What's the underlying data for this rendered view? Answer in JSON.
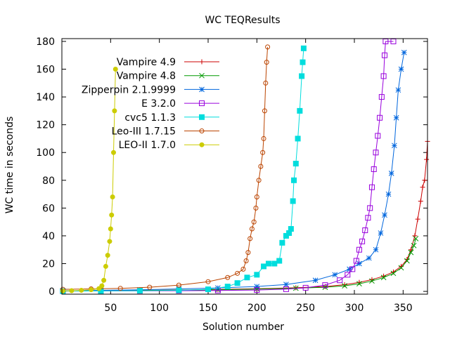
{
  "chart_data": {
    "type": "line",
    "title": "WC TEQResults",
    "xlabel": "Solution number",
    "ylabel": "WC time in seconds",
    "xlim": [
      0,
      375
    ],
    "ylim": [
      -2,
      182
    ],
    "x_ticks": [
      50,
      100,
      150,
      200,
      250,
      300,
      350
    ],
    "y_ticks": [
      0,
      20,
      40,
      60,
      80,
      100,
      120,
      140,
      160,
      180
    ],
    "grid": false,
    "legend_position": "top-left",
    "series": [
      {
        "name": "Vampire 4.9",
        "color": "#cc0000",
        "marker": "plus",
        "points": [
          [
            1,
            0.3
          ],
          [
            40,
            0.5
          ],
          [
            80,
            0.8
          ],
          [
            120,
            1.0
          ],
          [
            160,
            1.4
          ],
          [
            200,
            1.9
          ],
          [
            240,
            2.6
          ],
          [
            270,
            3.5
          ],
          [
            290,
            4.8
          ],
          [
            305,
            6.5
          ],
          [
            318,
            8.5
          ],
          [
            330,
            11
          ],
          [
            340,
            14
          ],
          [
            348,
            18
          ],
          [
            354,
            23
          ],
          [
            358,
            30
          ],
          [
            362,
            40
          ],
          [
            365,
            52
          ],
          [
            368,
            65
          ],
          [
            370,
            75
          ],
          [
            372,
            80
          ],
          [
            374,
            95
          ],
          [
            375,
            108
          ]
        ]
      },
      {
        "name": "Vampire 4.8",
        "color": "#009900",
        "marker": "cross",
        "points": [
          [
            1,
            0.3
          ],
          [
            40,
            0.5
          ],
          [
            80,
            0.7
          ],
          [
            120,
            0.9
          ],
          [
            160,
            1.2
          ],
          [
            200,
            1.7
          ],
          [
            240,
            2.3
          ],
          [
            270,
            3.0
          ],
          [
            290,
            4.0
          ],
          [
            305,
            5.5
          ],
          [
            318,
            7.5
          ],
          [
            330,
            10
          ],
          [
            340,
            13
          ],
          [
            348,
            17
          ],
          [
            354,
            22
          ],
          [
            358,
            28
          ],
          [
            361,
            33
          ],
          [
            363,
            38
          ]
        ]
      },
      {
        "name": "Zipperpin 2.1.9999",
        "color": "#0066dd",
        "marker": "star",
        "points": [
          [
            1,
            0.4
          ],
          [
            40,
            0.8
          ],
          [
            80,
            1.2
          ],
          [
            120,
            1.8
          ],
          [
            160,
            2.5
          ],
          [
            200,
            3.5
          ],
          [
            230,
            5.0
          ],
          [
            260,
            8.0
          ],
          [
            280,
            12
          ],
          [
            295,
            16
          ],
          [
            305,
            20
          ],
          [
            315,
            24
          ],
          [
            322,
            30
          ],
          [
            327,
            42
          ],
          [
            331,
            55
          ],
          [
            335,
            70
          ],
          [
            338,
            85
          ],
          [
            341,
            105
          ],
          [
            343,
            125
          ],
          [
            345,
            145
          ],
          [
            348,
            160
          ],
          [
            351,
            172
          ]
        ]
      },
      {
        "name": "E 3.2.0",
        "color": "#9900dd",
        "marker": "square",
        "points": [
          [
            1,
            0.2
          ],
          [
            40,
            0.3
          ],
          [
            80,
            0.4
          ],
          [
            120,
            0.5
          ],
          [
            160,
            0.7
          ],
          [
            200,
            1.0
          ],
          [
            230,
            1.6
          ],
          [
            250,
            2.6
          ],
          [
            270,
            4.5
          ],
          [
            285,
            8.0
          ],
          [
            293,
            12
          ],
          [
            298,
            16
          ],
          [
            302,
            22
          ],
          [
            305,
            30
          ],
          [
            308,
            36
          ],
          [
            311,
            44
          ],
          [
            314,
            53
          ],
          [
            316,
            60
          ],
          [
            318,
            75
          ],
          [
            320,
            88
          ],
          [
            322,
            100
          ],
          [
            324,
            112
          ],
          [
            326,
            125
          ],
          [
            328,
            140
          ],
          [
            330,
            155
          ],
          [
            331,
            170
          ],
          [
            332,
            180
          ],
          [
            340,
            180
          ]
        ]
      },
      {
        "name": "cvc5 1.1.3",
        "color": "#00dddd",
        "marker": "filled-square",
        "points": [
          [
            1,
            0.2
          ],
          [
            40,
            0.3
          ],
          [
            80,
            0.5
          ],
          [
            120,
            0.8
          ],
          [
            150,
            1.5
          ],
          [
            170,
            3.5
          ],
          [
            180,
            6.0
          ],
          [
            190,
            10
          ],
          [
            200,
            12
          ],
          [
            207,
            18
          ],
          [
            212,
            20
          ],
          [
            218,
            20
          ],
          [
            223,
            22
          ],
          [
            226,
            35
          ],
          [
            230,
            40
          ],
          [
            233,
            42
          ],
          [
            235,
            45
          ],
          [
            237,
            65
          ],
          [
            238,
            80
          ],
          [
            240,
            92
          ],
          [
            242,
            110
          ],
          [
            244,
            130
          ],
          [
            246,
            155
          ],
          [
            247,
            165
          ],
          [
            248,
            175
          ]
        ]
      },
      {
        "name": "Leo-III 1.7.15",
        "color": "#bb4400",
        "marker": "circle",
        "points": [
          [
            1,
            1.5
          ],
          [
            30,
            1.8
          ],
          [
            60,
            2.2
          ],
          [
            90,
            3.0
          ],
          [
            120,
            4.5
          ],
          [
            150,
            7.0
          ],
          [
            170,
            10
          ],
          [
            180,
            13
          ],
          [
            186,
            16
          ],
          [
            189,
            22
          ],
          [
            191,
            28
          ],
          [
            193,
            38
          ],
          [
            195,
            45
          ],
          [
            197,
            50
          ],
          [
            199,
            60
          ],
          [
            200,
            68
          ],
          [
            202,
            80
          ],
          [
            204,
            90
          ],
          [
            206,
            100
          ],
          [
            207,
            110
          ],
          [
            208,
            130
          ],
          [
            209,
            150
          ],
          [
            210,
            165
          ],
          [
            211,
            176
          ]
        ]
      },
      {
        "name": "LEO-II 1.7.0",
        "color": "#cccc00",
        "marker": "filled-circle",
        "points": [
          [
            1,
            0.3
          ],
          [
            10,
            0.5
          ],
          [
            20,
            0.8
          ],
          [
            30,
            1.2
          ],
          [
            38,
            2.0
          ],
          [
            41,
            4.0
          ],
          [
            43,
            8.0
          ],
          [
            45,
            18
          ],
          [
            47,
            26
          ],
          [
            49,
            36
          ],
          [
            50,
            45
          ],
          [
            51,
            55
          ],
          [
            52,
            68
          ],
          [
            53,
            100
          ],
          [
            54,
            130
          ],
          [
            55,
            160
          ]
        ]
      }
    ]
  }
}
